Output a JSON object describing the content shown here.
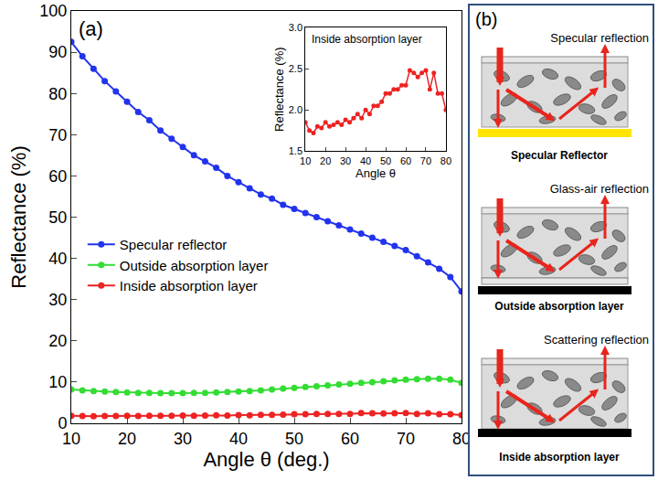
{
  "chart_data": [
    {
      "type": "line",
      "annotations": [
        "(a)"
      ],
      "x_label": "Angle θ (deg.)",
      "y_label": "Reflectance (%)",
      "x": [
        10,
        12,
        14,
        16,
        18,
        20,
        22,
        24,
        26,
        28,
        30,
        32,
        34,
        36,
        38,
        40,
        42,
        44,
        46,
        48,
        50,
        52,
        54,
        56,
        58,
        60,
        62,
        64,
        66,
        68,
        70,
        72,
        74,
        76,
        78,
        80
      ],
      "series": [
        {
          "name": "Specular reflector",
          "color": "#2233ee",
          "marker": "circle",
          "line_style": "solid",
          "values": [
            92.5,
            89,
            86,
            83,
            80.5,
            78,
            75.5,
            73.5,
            71,
            69,
            67,
            65,
            63.5,
            62,
            60,
            58.5,
            57,
            55.5,
            54.5,
            53,
            52,
            51,
            50,
            49,
            48,
            47,
            46,
            45,
            44,
            43,
            42,
            40.5,
            39,
            37.5,
            35.5,
            32
          ]
        },
        {
          "name": "Outside absorption layer",
          "color": "#33dd33",
          "marker": "circle",
          "line_style": "solid",
          "values": [
            8.2,
            8,
            7.8,
            7.7,
            7.6,
            7.5,
            7.4,
            7.4,
            7.3,
            7.3,
            7.3,
            7.4,
            7.4,
            7.5,
            7.6,
            7.7,
            7.8,
            8,
            8.2,
            8.4,
            8.6,
            8.8,
            9,
            9.2,
            9.4,
            9.6,
            9.8,
            10,
            10.2,
            10.4,
            10.6,
            10.7,
            10.8,
            10.8,
            10.6,
            9.8
          ]
        },
        {
          "name": "Inside absorption layer",
          "color": "#ee2222",
          "marker": "circle",
          "line_style": "solid",
          "values": [
            1.85,
            1.75,
            1.72,
            1.8,
            1.78,
            1.85,
            1.8,
            1.82,
            1.85,
            1.82,
            1.88,
            1.85,
            1.9,
            1.95,
            1.9,
            2.0,
            1.95,
            2.05,
            2.05,
            2.1,
            2.2,
            2.2,
            2.25,
            2.25,
            2.3,
            2.3,
            2.48,
            2.45,
            2.4,
            2.45,
            2.48,
            2.25,
            2.45,
            2.2,
            2.2,
            2.0
          ]
        }
      ],
      "xlim": [
        10,
        80
      ],
      "xticks": [
        10,
        20,
        30,
        40,
        50,
        60,
        70,
        80
      ],
      "ylim": [
        0,
        100
      ],
      "yticks": [
        0,
        10,
        20,
        30,
        40,
        50,
        60,
        70,
        80,
        90,
        100
      ],
      "legend": "left",
      "grid": false
    },
    {
      "type": "line",
      "annotations": [
        "Inside absorption layer"
      ],
      "x_label": "Angle θ",
      "y_label": "Reflectance (%)",
      "x": [
        10,
        12,
        14,
        16,
        18,
        20,
        22,
        24,
        26,
        28,
        30,
        32,
        34,
        36,
        38,
        40,
        42,
        44,
        46,
        48,
        50,
        52,
        54,
        56,
        58,
        60,
        62,
        64,
        66,
        68,
        70,
        72,
        74,
        76,
        78,
        80
      ],
      "series": [
        {
          "name": "Inside absorption layer",
          "color": "#ee2222",
          "marker": "circle",
          "line_style": "solid",
          "values": [
            1.85,
            1.75,
            1.72,
            1.8,
            1.78,
            1.85,
            1.8,
            1.82,
            1.85,
            1.82,
            1.88,
            1.85,
            1.9,
            1.95,
            1.9,
            2.0,
            1.95,
            2.05,
            2.05,
            2.1,
            2.2,
            2.2,
            2.25,
            2.25,
            2.3,
            2.3,
            2.48,
            2.45,
            2.4,
            2.45,
            2.48,
            2.25,
            2.45,
            2.2,
            2.2,
            2.0
          ]
        }
      ],
      "xlim": [
        10,
        80
      ],
      "xticks": [
        10,
        20,
        30,
        40,
        50,
        60,
        70,
        80
      ],
      "ylim": [
        1.5,
        3.0
      ],
      "yticks": [
        1.5,
        {
          "value": 2,
          "label": "2.0"
        },
        2.5,
        {
          "value": 3,
          "label": "3.0"
        }
      ],
      "grid": false
    }
  ],
  "diagram": {
    "label": "(b)",
    "panels": [
      {
        "reflection": "Specular reflection",
        "caption": "Specular Reflector",
        "bottom": "specular"
      },
      {
        "reflection": "Glass-air reflection",
        "caption": "Outside absorption layer",
        "bottom": "outside"
      },
      {
        "reflection": "Scattering reflection",
        "caption": "Inside absorption layer",
        "bottom": "inside"
      }
    ]
  }
}
